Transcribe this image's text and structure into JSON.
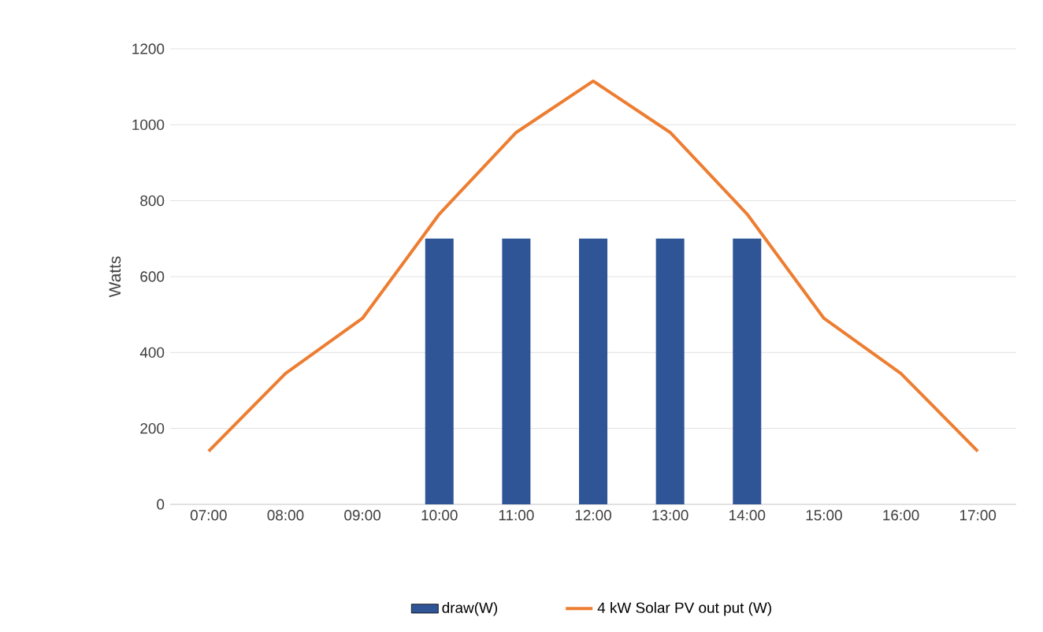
{
  "chart_data": {
    "type": "bar",
    "ylabel": "Watts",
    "categories": [
      "07:00",
      "08:00",
      "09:00",
      "10:00",
      "11:00",
      "12:00",
      "13:00",
      "14:00",
      "15:00",
      "16:00",
      "17:00"
    ],
    "series": [
      {
        "name": "draw(W)",
        "color": "#2f5597",
        "values": [
          null,
          null,
          null,
          700,
          700,
          700,
          700,
          700,
          null,
          null,
          null
        ]
      },
      {
        "name": "4 kW Solar PV out put (W)",
        "type": "line",
        "color": "#ed7d31",
        "values": [
          140,
          345,
          490,
          765,
          980,
          1115,
          980,
          765,
          490,
          345,
          140
        ]
      }
    ],
    "ylim": [
      0,
      1200
    ],
    "yticks": [
      0,
      200,
      400,
      600,
      800,
      1000,
      1200
    ],
    "grid": "y",
    "legend": "bottom"
  }
}
